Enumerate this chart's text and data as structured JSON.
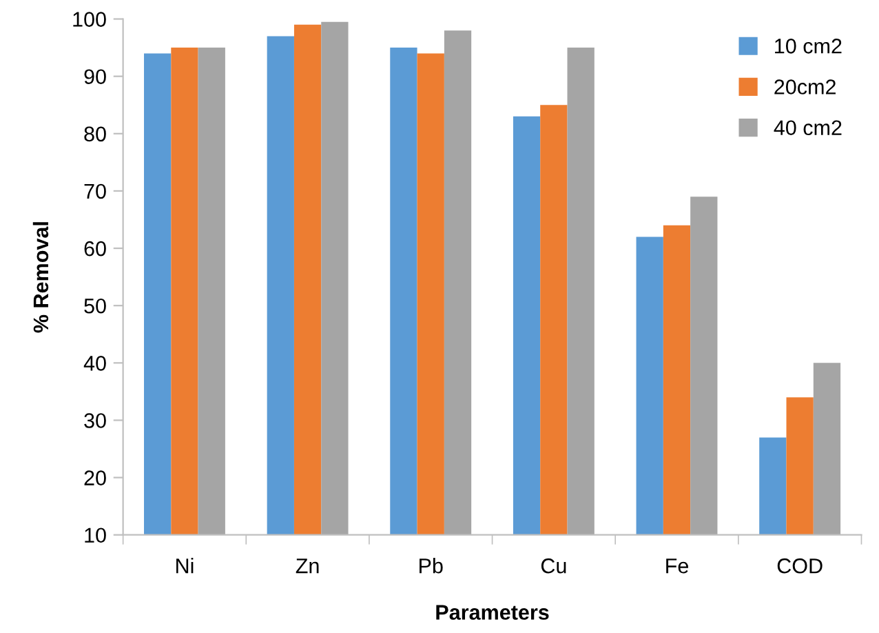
{
  "chart_data": {
    "type": "bar",
    "xlabel": "Parameters",
    "ylabel": "% Removal",
    "categories": [
      "Ni",
      "Zn",
      "Pb",
      "Cu",
      "Fe",
      "COD"
    ],
    "series": [
      {
        "name": "10 cm2",
        "color": "#5b9bd5",
        "values": [
          94,
          97,
          95,
          83,
          62,
          27
        ]
      },
      {
        "name": "20cm2",
        "color": "#ed7d31",
        "values": [
          95,
          99,
          94,
          85,
          64,
          34
        ]
      },
      {
        "name": "40 cm2",
        "color": "#a5a5a5",
        "values": [
          95,
          99.5,
          98,
          95,
          69,
          40
        ]
      }
    ],
    "ylim": [
      10,
      100
    ],
    "yticks": [
      10,
      20,
      30,
      40,
      50,
      60,
      70,
      80,
      90,
      100
    ],
    "grid": false,
    "legend": "top right"
  }
}
